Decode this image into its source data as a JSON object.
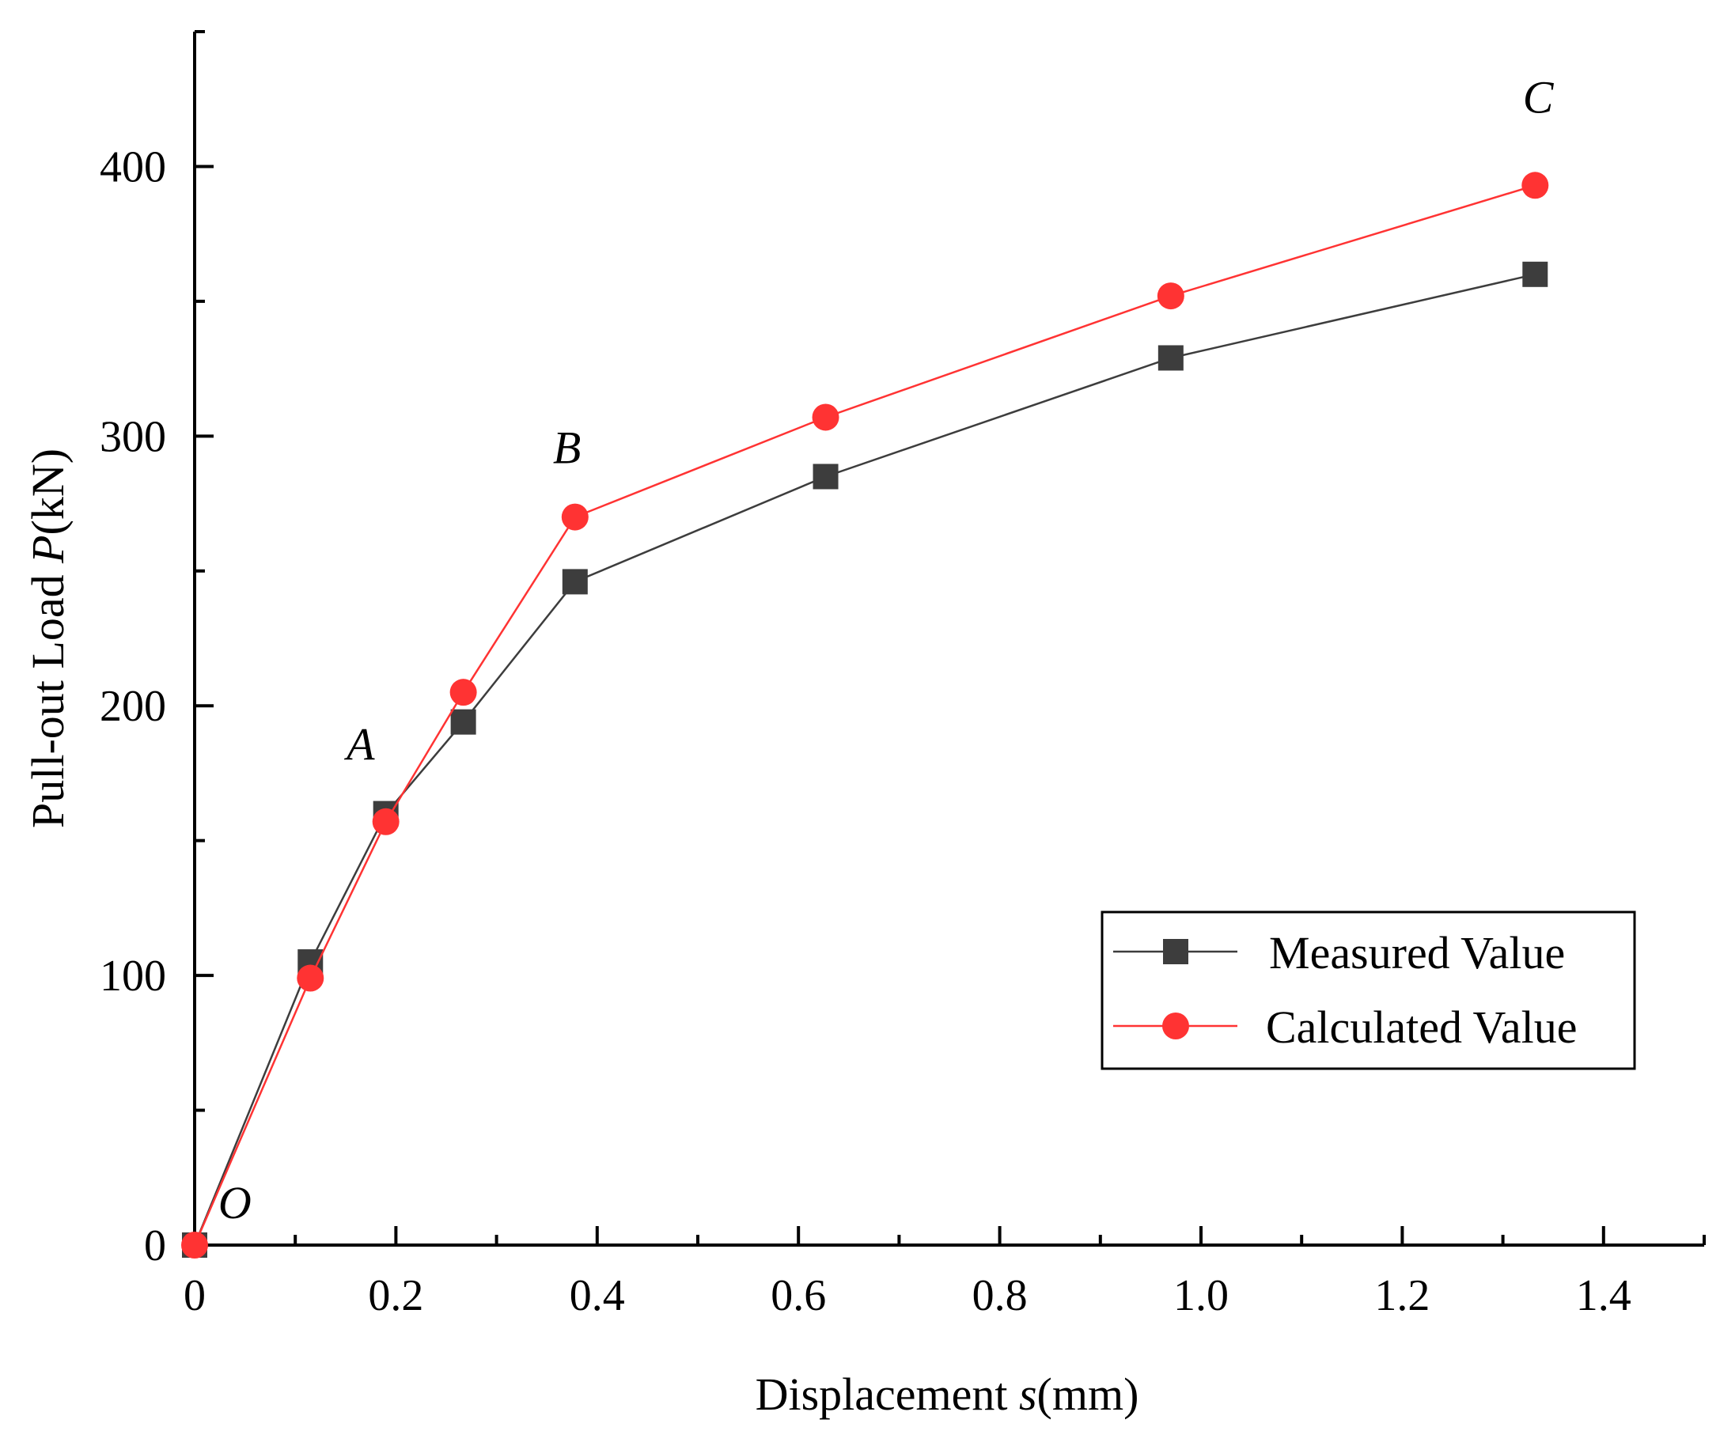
{
  "chart_data": {
    "type": "line",
    "title": "",
    "xlabel": "Displacement s(mm)",
    "xlabel_parts": {
      "prefix": "Displacement ",
      "var": "s",
      "suffix": "(mm)"
    },
    "ylabel": "Pull-out Load P(kN)",
    "ylabel_parts": {
      "prefix": "Pull-out Load ",
      "var": "P",
      "suffix": "(kN)"
    },
    "xlim": [
      0,
      1.5
    ],
    "ylim": [
      0,
      450
    ],
    "xticks": [
      0,
      0.2,
      0.4,
      0.6,
      0.8,
      1.0,
      1.2,
      1.4
    ],
    "xtick_labels": [
      "0",
      "0.2",
      "0.4",
      "0.6",
      "0.8",
      "1.0",
      "1.2",
      "1.4"
    ],
    "xminor": [
      0.1,
      0.3,
      0.5,
      0.7,
      0.9,
      1.1,
      1.3,
      1.5
    ],
    "yticks": [
      0,
      100,
      200,
      300,
      400
    ],
    "ytick_labels": [
      "0",
      "100",
      "200",
      "300",
      "400"
    ],
    "yminor": [
      50,
      150,
      250,
      350,
      450
    ],
    "grid": false,
    "legend_position": "bottom-right",
    "series": [
      {
        "name": "Measured Value",
        "color": "#3d3d3d",
        "marker": "square",
        "x": [
          0,
          0.115,
          0.19,
          0.267,
          0.378,
          0.627,
          0.97,
          1.332
        ],
        "y": [
          0,
          105,
          160,
          194,
          246,
          285,
          329,
          360
        ]
      },
      {
        "name": "Calculated Value",
        "color": "#ff3333",
        "marker": "circle",
        "x": [
          0,
          0.115,
          0.19,
          0.267,
          0.378,
          0.627,
          0.97,
          1.332
        ],
        "y": [
          0,
          99,
          157,
          205,
          270,
          307,
          352,
          393
        ]
      }
    ],
    "annotations": [
      {
        "text": "O",
        "x": 0.04,
        "y": 10
      },
      {
        "text": "A",
        "x": 0.165,
        "y": 180
      },
      {
        "text": "B",
        "x": 0.37,
        "y": 290
      },
      {
        "text": "C",
        "x": 1.335,
        "y": 420
      }
    ]
  }
}
